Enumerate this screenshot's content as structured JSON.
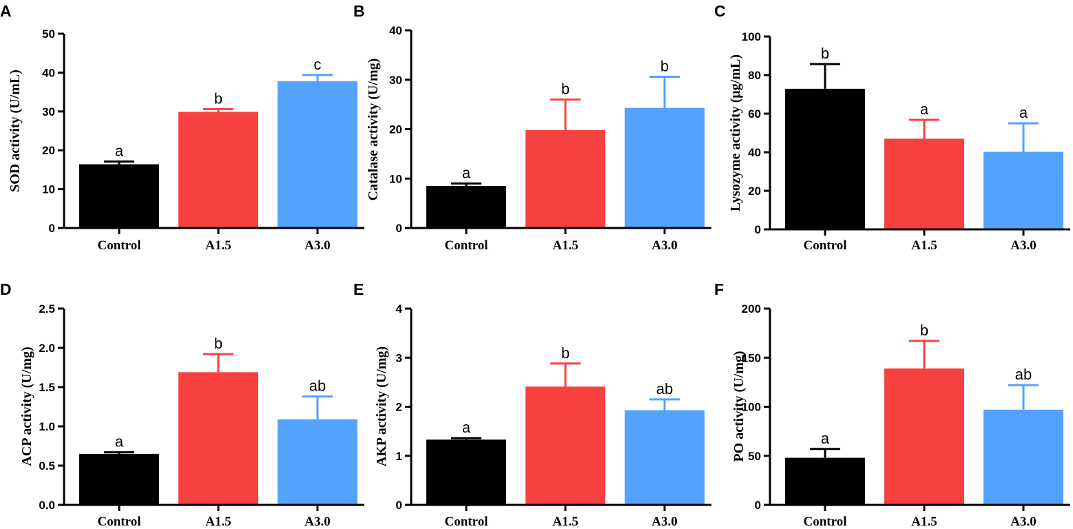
{
  "colors": {
    "Control": "#000000",
    "A1.5": "#f74040",
    "A3.0": "#52a2fe",
    "axis": "#000000"
  },
  "chart_data": [
    {
      "panel": "A",
      "type": "bar",
      "categories": [
        "Control",
        "A1.5",
        "A3.0"
      ],
      "values": [
        16.4,
        29.9,
        37.8
      ],
      "errors": [
        0.7,
        0.7,
        1.6
      ],
      "sig": [
        "a",
        "b",
        "c"
      ],
      "ylabel": "SOD activity (U/mL)",
      "ylim": [
        0,
        50
      ],
      "ticks": [
        0,
        10,
        20,
        30,
        40,
        50
      ],
      "tick_labels": [
        "0",
        "10",
        "20",
        "30",
        "40",
        "50"
      ]
    },
    {
      "panel": "B",
      "type": "bar",
      "categories": [
        "Control",
        "A1.5",
        "A3.0"
      ],
      "values": [
        8.5,
        19.8,
        24.3
      ],
      "errors": [
        0.5,
        6.2,
        6.3
      ],
      "sig": [
        "a",
        "b",
        "b"
      ],
      "ylabel": "Catalase activity (U/mg)",
      "ylim": [
        0,
        40
      ],
      "ticks": [
        0,
        10,
        20,
        30,
        40
      ],
      "tick_labels": [
        "0",
        "10",
        "20",
        "30",
        "40"
      ]
    },
    {
      "panel": "C",
      "type": "bar",
      "categories": [
        "Control",
        "A1.5",
        "A3.0"
      ],
      "values": [
        72.9,
        47.0,
        40.2
      ],
      "errors": [
        12.8,
        9.8,
        14.8
      ],
      "sig": [
        "b",
        "a",
        "a"
      ],
      "ylabel": "Lysozyme activity (μg/mL)",
      "ylim": [
        0,
        100
      ],
      "ticks": [
        0,
        20,
        40,
        60,
        80,
        100
      ],
      "tick_labels": [
        "0",
        "20",
        "40",
        "60",
        "80",
        "100"
      ]
    },
    {
      "panel": "D",
      "type": "bar",
      "categories": [
        "Control",
        "A1.5",
        "A3.0"
      ],
      "values": [
        0.65,
        1.69,
        1.09
      ],
      "errors": [
        0.02,
        0.23,
        0.29
      ],
      "sig": [
        "a",
        "b",
        "ab"
      ],
      "ylabel": "ACP activity (U/mg)",
      "ylim": [
        0,
        2.5
      ],
      "ticks": [
        0,
        0.5,
        1.0,
        1.5,
        2.0,
        2.5
      ],
      "tick_labels": [
        "0.0",
        "0.5",
        "1.0",
        "1.5",
        "2.0",
        "2.5"
      ]
    },
    {
      "panel": "E",
      "type": "bar",
      "categories": [
        "Control",
        "A1.5",
        "A3.0"
      ],
      "values": [
        1.33,
        2.41,
        1.93
      ],
      "errors": [
        0.03,
        0.47,
        0.22
      ],
      "sig": [
        "a",
        "b",
        "ab"
      ],
      "ylabel": "AKP activity (U/mg)",
      "ylim": [
        0,
        4
      ],
      "ticks": [
        0,
        1,
        2,
        3,
        4
      ],
      "tick_labels": [
        "0",
        "1",
        "2",
        "3",
        "4"
      ]
    },
    {
      "panel": "F",
      "type": "bar",
      "categories": [
        "Control",
        "A1.5",
        "A3.0"
      ],
      "values": [
        48,
        139,
        97
      ],
      "errors": [
        9,
        28,
        25
      ],
      "sig": [
        "a",
        "b",
        "ab"
      ],
      "ylabel": "PO activity (U/mg)",
      "ylim": [
        0,
        200
      ],
      "ticks": [
        0,
        50,
        100,
        150,
        200
      ],
      "tick_labels": [
        "0",
        "50",
        "100",
        "150",
        "200"
      ]
    }
  ]
}
